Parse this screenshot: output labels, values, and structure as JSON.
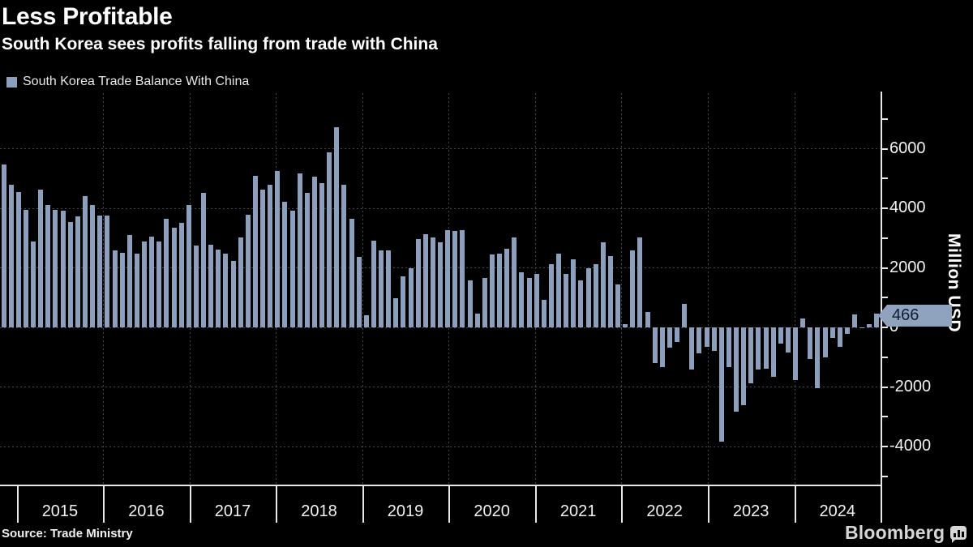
{
  "header": {
    "title": "Less Profitable",
    "subtitle": "South Korea sees profits falling from trade with China"
  },
  "legend": {
    "label": "South Korea Trade Balance With China",
    "swatch_color": "#8C9FBD"
  },
  "chart_data": {
    "type": "bar",
    "title": "Less Profitable",
    "subtitle": "South Korea sees profits falling from trade with China",
    "ylabel": "Million USD",
    "xlabel": "",
    "legend_position": "top-left",
    "grid": "dashed-dark",
    "bar_color": "#8C9FBD",
    "badge_color": "#8FA2BE",
    "badge_text_color": "#0f1d33",
    "axis_color": "#e8e8e8",
    "ylim": [
      -5360,
      7860
    ],
    "ytick_labeled": [
      6000,
      4000,
      2000,
      0,
      -2000,
      -4000
    ],
    "ytick_minor_step": 1000,
    "categories_years": [
      "2015",
      "2016",
      "2017",
      "2018",
      "2019",
      "2020",
      "2021",
      "2022",
      "2023",
      "2024"
    ],
    "start_month": "2015-01",
    "end_month": "2024-11",
    "last_value_label": "466",
    "series": [
      {
        "name": "South Korea Trade Balance With China",
        "values": [
          5480,
          4780,
          4550,
          3940,
          2880,
          4640,
          4120,
          3940,
          3920,
          3540,
          3740,
          4420,
          4100,
          3760,
          3760,
          2580,
          2510,
          3100,
          2470,
          2880,
          3060,
          2880,
          3660,
          3340,
          3510,
          4120,
          2760,
          4510,
          2780,
          2600,
          2480,
          2240,
          3030,
          3780,
          5100,
          4640,
          4780,
          5260,
          4210,
          3920,
          5170,
          4530,
          5070,
          4840,
          5870,
          6730,
          4780,
          3660,
          2360,
          400,
          2900,
          2580,
          2580,
          970,
          1720,
          1990,
          2970,
          3120,
          3010,
          2850,
          3260,
          3240,
          3260,
          1580,
          470,
          1670,
          2450,
          2480,
          2630,
          3030,
          1850,
          1670,
          1790,
          940,
          2120,
          2480,
          1810,
          2300,
          1580,
          1990,
          2120,
          2850,
          2390,
          1450,
          100,
          2580,
          3010,
          520,
          -1200,
          -1340,
          -690,
          -480,
          790,
          -1410,
          -870,
          -660,
          -800,
          -3840,
          -1320,
          -2840,
          -2610,
          -1870,
          -1410,
          -1390,
          -1660,
          -540,
          -840,
          -1780,
          290,
          -1050,
          -2050,
          -1000,
          -350,
          -660,
          -210,
          430,
          -30,
          100,
          466
        ]
      }
    ]
  },
  "footer": {
    "source": "Source: Trade Ministry",
    "brand": "Bloomberg"
  }
}
